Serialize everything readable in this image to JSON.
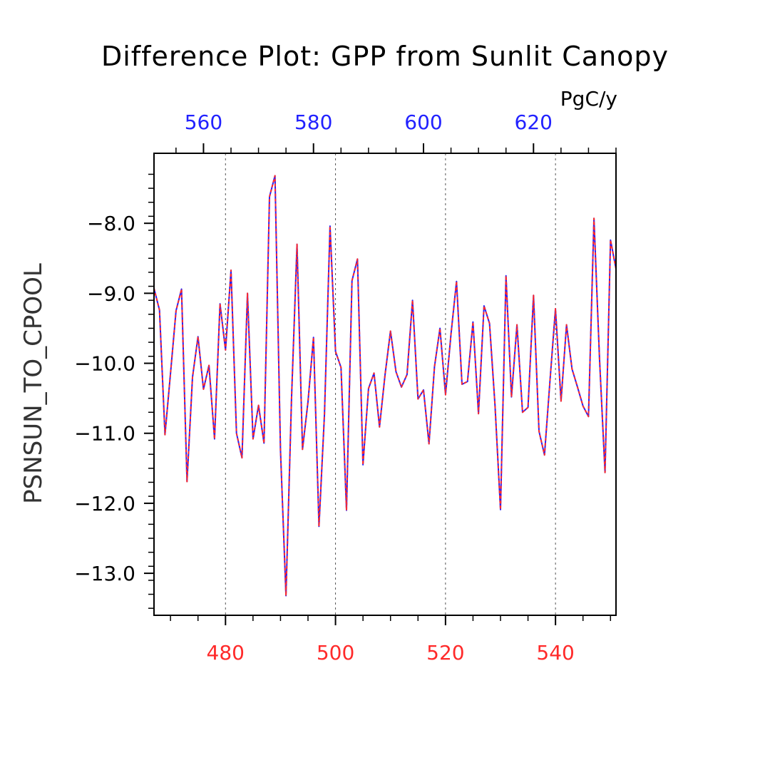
{
  "chart_data": {
    "type": "line",
    "title": "Difference Plot: GPP from Sunlit Canopy",
    "units": "PgC/y",
    "ylabel": "PSNSUN_TO_CPOOL",
    "xlabel": "",
    "bottom_axis": {
      "color": "#ff2a2a",
      "range": [
        467,
        551
      ],
      "ticks": [
        480,
        500,
        520,
        540
      ],
      "tick_labels": [
        "480",
        "500",
        "520",
        "540"
      ]
    },
    "top_axis": {
      "color": "#2222ff",
      "range": [
        551,
        635
      ],
      "ticks": [
        560,
        580,
        600,
        620
      ],
      "tick_labels": [
        "560",
        "580",
        "600",
        "620"
      ]
    },
    "ylim": [
      -13.6,
      -7.0
    ],
    "y_ticks": [
      -13.0,
      -12.0,
      -11.0,
      -10.0,
      -9.0,
      -8.0
    ],
    "y_tick_labels": [
      "−13.0",
      "−12.0",
      "−11.0",
      "−10.0",
      "−9.0",
      "−8.0"
    ],
    "grid": "vertical dashed at major x ticks",
    "series": [
      {
        "color": "#2222ff",
        "style": "solid",
        "x": [
          467,
          468,
          469,
          470,
          471,
          472,
          473,
          474,
          475,
          476,
          477,
          478,
          479,
          480,
          481,
          482,
          483,
          484,
          485,
          486,
          487,
          488,
          489,
          490,
          491,
          492,
          493,
          494,
          495,
          496,
          497,
          498,
          499,
          500,
          501,
          502,
          503,
          504,
          505,
          506,
          507,
          508,
          509,
          510,
          511,
          512,
          513,
          514,
          515,
          516,
          517,
          518,
          519,
          520,
          521,
          522,
          523,
          524,
          525,
          526,
          527,
          528,
          529,
          530,
          531,
          532,
          533,
          534,
          535,
          536,
          537,
          538,
          539,
          540,
          541,
          542,
          543,
          544,
          545,
          546,
          547,
          548,
          549,
          550,
          551
        ],
        "y": [
          -8.93,
          -9.24,
          -11.02,
          -10.15,
          -9.25,
          -8.94,
          -11.69,
          -10.2,
          -9.62,
          -10.37,
          -10.03,
          -11.08,
          -9.15,
          -9.81,
          -8.67,
          -11.0,
          -11.35,
          -9.0,
          -11.08,
          -10.6,
          -11.14,
          -7.62,
          -7.32,
          -11.24,
          -13.32,
          -10.5,
          -8.3,
          -11.23,
          -10.55,
          -9.63,
          -12.33,
          -10.73,
          -8.04,
          -9.83,
          -10.06,
          -12.1,
          -8.82,
          -8.51,
          -11.45,
          -10.36,
          -10.14,
          -10.91,
          -10.17,
          -9.54,
          -10.12,
          -10.34,
          -10.16,
          -9.1,
          -10.51,
          -10.38,
          -11.15,
          -10.05,
          -9.5,
          -10.45,
          -9.58,
          -8.83,
          -10.3,
          -10.26,
          -9.41,
          -10.72,
          -9.18,
          -9.43,
          -10.6,
          -12.09,
          -8.75,
          -10.48,
          -9.45,
          -10.7,
          -10.63,
          -9.03,
          -10.97,
          -11.31,
          -10.25,
          -9.22,
          -10.54,
          -9.45,
          -10.08,
          -10.34,
          -10.61,
          -10.76,
          -7.93,
          -9.94,
          -11.56,
          -8.24,
          -8.65
        ]
      },
      {
        "color": "#ff2a2a",
        "style": "dashed",
        "x": [
          467,
          468,
          469,
          470,
          471,
          472,
          473,
          474,
          475,
          476,
          477,
          478,
          479,
          480,
          481,
          482,
          483,
          484,
          485,
          486,
          487,
          488,
          489,
          490,
          491,
          492,
          493,
          494,
          495,
          496,
          497,
          498,
          499,
          500,
          501,
          502,
          503,
          504,
          505,
          506,
          507,
          508,
          509,
          510,
          511,
          512,
          513,
          514,
          515,
          516,
          517,
          518,
          519,
          520,
          521,
          522,
          523,
          524,
          525,
          526,
          527,
          528,
          529,
          530,
          531,
          532,
          533,
          534,
          535,
          536,
          537,
          538,
          539,
          540,
          541,
          542,
          543,
          544,
          545,
          546,
          547,
          548,
          549,
          550,
          551
        ],
        "y": [
          -8.93,
          -9.24,
          -11.02,
          -10.15,
          -9.25,
          -8.94,
          -11.69,
          -10.2,
          -9.62,
          -10.37,
          -10.03,
          -11.08,
          -9.15,
          -9.81,
          -8.67,
          -11.0,
          -11.35,
          -9.0,
          -11.08,
          -10.6,
          -11.14,
          -7.62,
          -7.32,
          -11.24,
          -13.32,
          -10.5,
          -8.3,
          -11.23,
          -10.55,
          -9.63,
          -12.33,
          -10.73,
          -8.04,
          -9.83,
          -10.06,
          -12.1,
          -8.82,
          -8.51,
          -11.45,
          -10.36,
          -10.14,
          -10.91,
          -10.17,
          -9.54,
          -10.12,
          -10.34,
          -10.16,
          -9.1,
          -10.51,
          -10.38,
          -11.15,
          -10.05,
          -9.5,
          -10.45,
          -9.58,
          -8.83,
          -10.3,
          -10.26,
          -9.41,
          -10.72,
          -9.18,
          -9.43,
          -10.6,
          -12.09,
          -8.75,
          -10.48,
          -9.45,
          -10.7,
          -10.63,
          -9.03,
          -10.97,
          -11.31,
          -10.25,
          -9.22,
          -10.54,
          -9.45,
          -10.08,
          -10.34,
          -10.61,
          -10.76,
          -7.93,
          -9.94,
          -11.56,
          -8.24,
          -8.65
        ]
      }
    ]
  }
}
